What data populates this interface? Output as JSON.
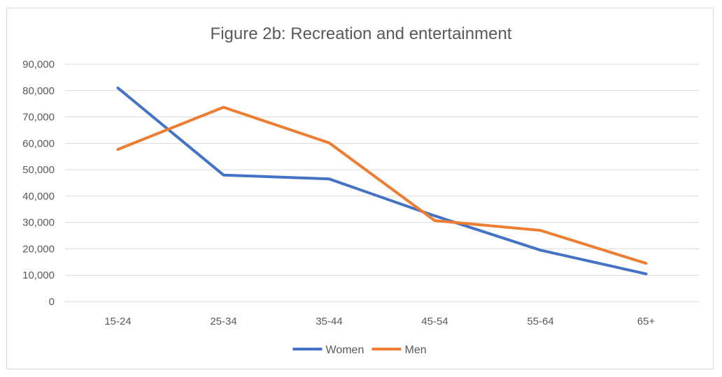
{
  "chart_data": {
    "type": "line",
    "title": "Figure 2b: Recreation and entertainment",
    "xlabel": "",
    "ylabel": "",
    "categories": [
      "15-24",
      "25-34",
      "35-44",
      "45-54",
      "55-64",
      "65+"
    ],
    "y_ticks": [
      "0",
      "10,000",
      "20,000",
      "30,000",
      "40,000",
      "50,000",
      "60,000",
      "70,000",
      "80,000",
      "90,000"
    ],
    "ylim": [
      0,
      90000
    ],
    "grid": true,
    "legend_position": "bottom",
    "series": [
      {
        "name": "Women",
        "color": "#4472c4",
        "values": [
          81000,
          48000,
          46500,
          32500,
          19500,
          10500
        ]
      },
      {
        "name": "Men",
        "color": "#ed7d31",
        "values": [
          57700,
          73700,
          60200,
          30700,
          27000,
          14500
        ]
      }
    ]
  }
}
